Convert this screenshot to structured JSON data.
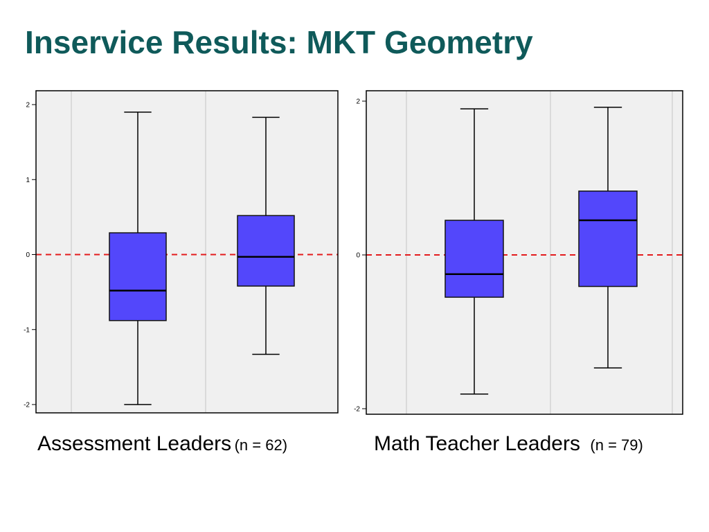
{
  "slide": {
    "title": "Inservice Results: MKT Geometry"
  },
  "colors": {
    "title": "#0f5a5a",
    "box_fill": "#5347fb",
    "reference_line": "#e31a1c",
    "plot_background": "#f0f0f0"
  },
  "captions": [
    {
      "main": "Assessment Leaders",
      "n": "(n = 62)"
    },
    {
      "main": "Math Teacher Leaders",
      "n": "(n = 79)"
    }
  ],
  "chart_data": [
    {
      "type": "box",
      "title": "",
      "xlabel": "",
      "ylabel": "",
      "ylim": [
        -2,
        2
      ],
      "y_tick_labels": [
        "2",
        "1",
        "0",
        "-1",
        "-2"
      ],
      "y_tick_values": [
        2,
        1,
        0,
        -1,
        -2
      ],
      "reference_line": 0,
      "grid": "vertical separators",
      "boxes": [
        {
          "min": -2.0,
          "q1": -0.88,
          "median": -0.48,
          "q3": 0.29,
          "max": 1.9
        },
        {
          "min": -1.33,
          "q1": -0.42,
          "median": -0.03,
          "q3": 0.52,
          "max": 1.83
        }
      ]
    },
    {
      "type": "box",
      "title": "",
      "xlabel": "",
      "ylabel": "",
      "ylim": [
        -2,
        2
      ],
      "y_tick_labels": [
        "2",
        "0",
        "-2"
      ],
      "y_tick_values": [
        2,
        0,
        -2
      ],
      "reference_line": 0,
      "grid": "vertical separators",
      "boxes": [
        {
          "min": -1.81,
          "q1": -0.55,
          "median": -0.25,
          "q3": 0.45,
          "max": 1.9
        },
        {
          "min": -1.47,
          "q1": -0.41,
          "median": 0.45,
          "q3": 0.83,
          "max": 1.92
        }
      ]
    }
  ]
}
